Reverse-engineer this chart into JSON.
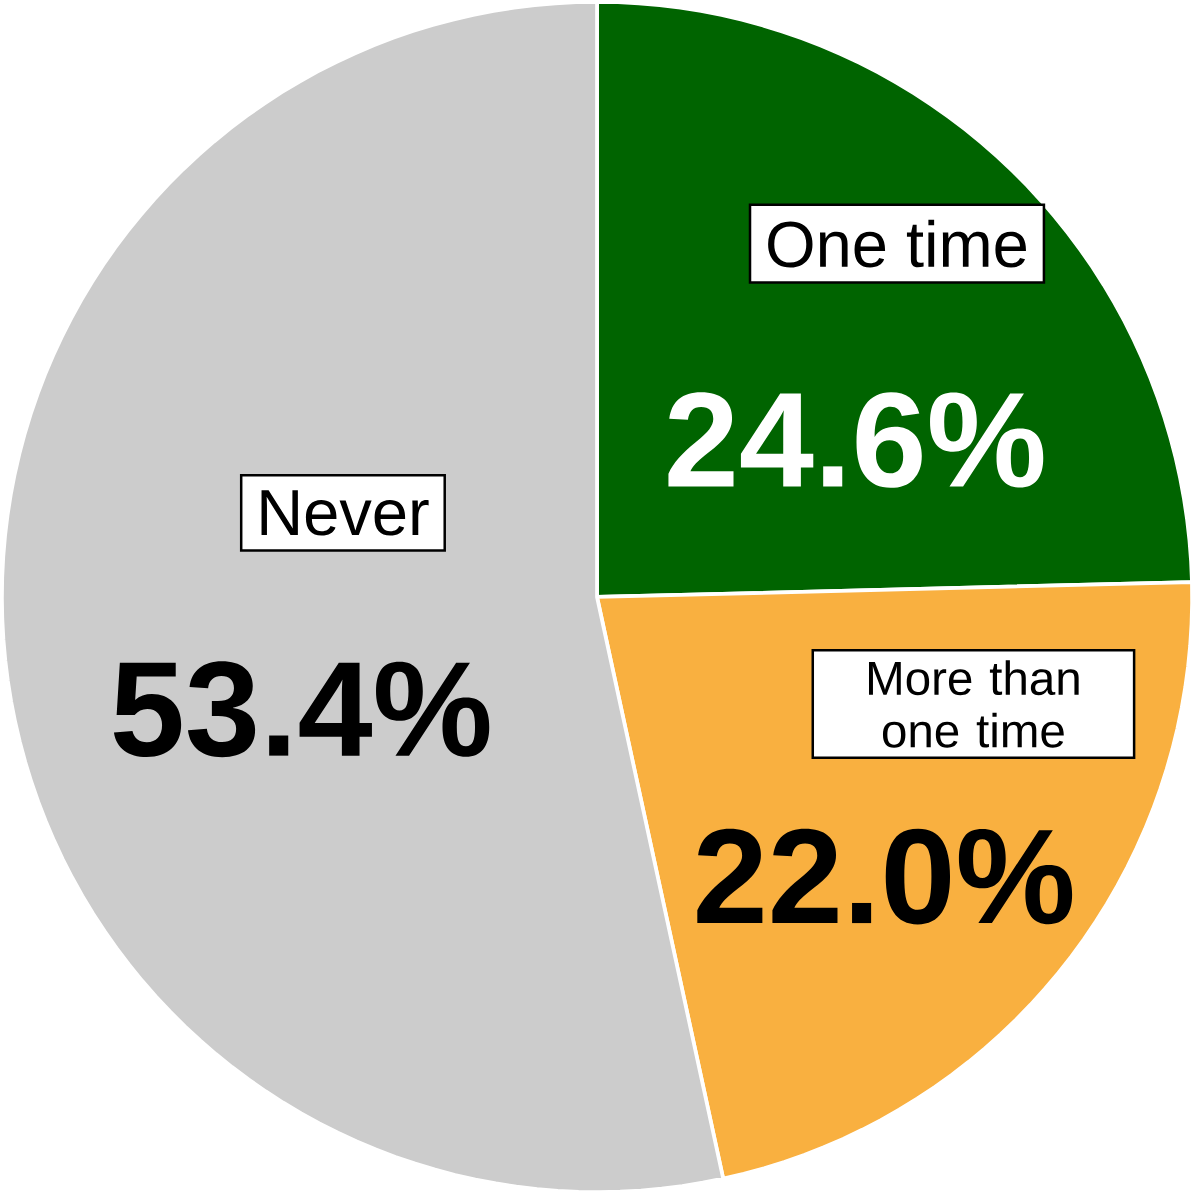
{
  "chart_data": {
    "type": "pie",
    "categories": [
      "One time",
      "More than one time",
      "Never"
    ],
    "values": [
      24.6,
      22.0,
      53.4
    ],
    "colors": [
      "#006400",
      "#f9b040",
      "#cccccc"
    ],
    "value_labels": [
      "24.6%",
      "22.0%",
      "53.4%"
    ]
  }
}
